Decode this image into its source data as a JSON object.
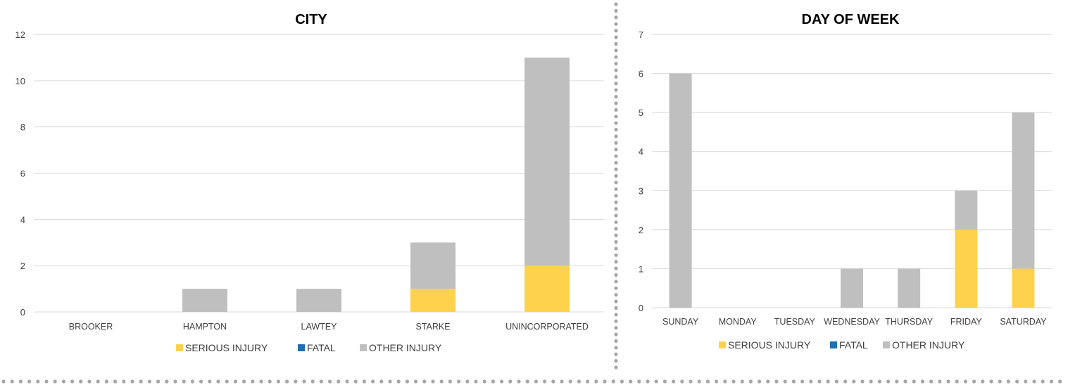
{
  "colors": {
    "serious": "#FFD24D",
    "fatal": "#1F6FB4",
    "other": "#BFBFBF",
    "grid": "#D9D9D9",
    "divider": "#A6A6A6"
  },
  "chart_data": [
    {
      "type": "bar",
      "stacked": true,
      "title": "CITY",
      "categories": [
        "BROOKER",
        "HAMPTON",
        "LAWTEY",
        "STARKE",
        "UNINCORPORATED"
      ],
      "series": [
        {
          "name": "SERIOUS INJURY",
          "values": [
            0,
            0,
            0,
            1,
            2
          ]
        },
        {
          "name": "FATAL",
          "values": [
            0,
            0,
            0,
            0,
            0
          ]
        },
        {
          "name": "OTHER INJURY",
          "values": [
            0,
            1,
            1,
            2,
            9
          ]
        }
      ],
      "ylim": [
        0,
        12
      ],
      "yticks": [
        0,
        2,
        4,
        6,
        8,
        10,
        12
      ],
      "grid": true,
      "legend": "bottom"
    },
    {
      "type": "bar",
      "stacked": true,
      "title": "DAY OF WEEK",
      "categories": [
        "SUNDAY",
        "MONDAY",
        "TUESDAY",
        "WEDNESDAY",
        "THURSDAY",
        "FRIDAY",
        "SATURDAY"
      ],
      "series": [
        {
          "name": "SERIOUS INJURY",
          "values": [
            0,
            0,
            0,
            0,
            0,
            2,
            1
          ]
        },
        {
          "name": "FATAL",
          "values": [
            0,
            0,
            0,
            0,
            0,
            0,
            0
          ]
        },
        {
          "name": "OTHER INJURY",
          "values": [
            6,
            0,
            0,
            1,
            1,
            1,
            4
          ]
        }
      ],
      "ylim": [
        0,
        7
      ],
      "yticks": [
        0,
        1,
        2,
        3,
        4,
        5,
        6,
        7
      ],
      "grid": true,
      "legend": "bottom"
    }
  ]
}
